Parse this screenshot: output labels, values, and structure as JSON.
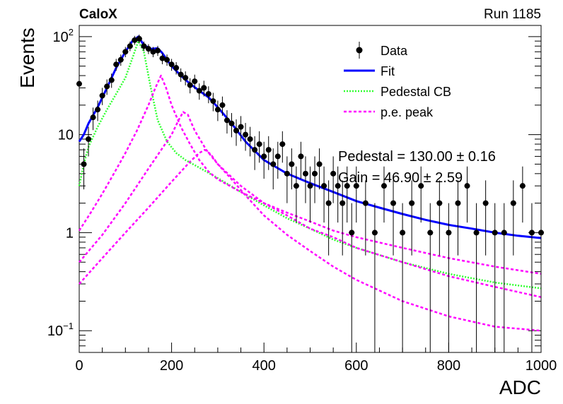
{
  "header": {
    "experiment": "CaloX",
    "run": "Run 1185"
  },
  "chart_data": {
    "type": "scatter",
    "xlabel": "ADC",
    "ylabel": "Events",
    "xlim": [
      0,
      1000
    ],
    "ylim": [
      0.06,
      130
    ],
    "yscale": "log",
    "grid": false,
    "legend_position": "top-right",
    "x_ticks": [
      "0",
      "200",
      "400",
      "600",
      "800",
      "1000"
    ],
    "y_ticks": [
      {
        "value": 100,
        "label": "10",
        "exp": "2"
      },
      {
        "value": 10,
        "label": "10",
        "exp": ""
      },
      {
        "value": 1,
        "label": "1",
        "exp": ""
      },
      {
        "value": 0.1,
        "label": "10",
        "exp": "−1"
      }
    ],
    "legend": [
      {
        "label": "Data",
        "style": "marker",
        "color": "#000000"
      },
      {
        "label": "Fit",
        "style": "solid",
        "color": "#0000ff"
      },
      {
        "label": "Pedestal CB",
        "style": "dotted",
        "color": "#33ff33"
      },
      {
        "label": "p.e. peak",
        "style": "dashed",
        "color": "#ff00ff"
      }
    ],
    "annotations": [
      "Pedestal = 130.00 ± 0.16",
      "Gain = 46.90 ± 2.59"
    ],
    "series": [
      {
        "name": "Data",
        "type": "points",
        "color": "#000000",
        "x": [
          0,
          10,
          20,
          30,
          40,
          50,
          60,
          70,
          80,
          90,
          100,
          110,
          120,
          130,
          140,
          150,
          160,
          170,
          180,
          190,
          200,
          210,
          220,
          230,
          240,
          250,
          260,
          270,
          280,
          290,
          300,
          310,
          320,
          330,
          340,
          350,
          360,
          370,
          380,
          390,
          400,
          410,
          420,
          430,
          440,
          450,
          460,
          470,
          480,
          490,
          500,
          510,
          520,
          530,
          540,
          550,
          560,
          570,
          580,
          590,
          600,
          620,
          640,
          660,
          680,
          700,
          720,
          740,
          760,
          780,
          800,
          820,
          840,
          860,
          880,
          900,
          920,
          940,
          960,
          980,
          1000
        ],
        "y": [
          33,
          5,
          9,
          15,
          18,
          25,
          31,
          36,
          52,
          58,
          70,
          80,
          92,
          95,
          80,
          75,
          70,
          72,
          60,
          58,
          52,
          48,
          41,
          38,
          32,
          35,
          28,
          30,
          26,
          22,
          18,
          20,
          14,
          13,
          11,
          12,
          10,
          9,
          7,
          8,
          6,
          7,
          5,
          6,
          8,
          4,
          5,
          3,
          6,
          4,
          3,
          4,
          5,
          3,
          2,
          4,
          3,
          2,
          3,
          1,
          3,
          2,
          1,
          3,
          2,
          1,
          2,
          3,
          1,
          2,
          1,
          2,
          3,
          1,
          2,
          1,
          1,
          2,
          3,
          1,
          1
        ]
      },
      {
        "name": "Fit",
        "type": "line",
        "color": "#0000ff",
        "x": [
          0,
          10,
          20,
          40,
          60,
          80,
          100,
          115,
          128,
          140,
          155,
          170,
          180,
          190,
          200,
          220,
          240,
          260,
          280,
          300,
          330,
          360,
          400,
          450,
          500,
          550,
          600,
          650,
          700,
          750,
          800,
          850,
          900,
          950,
          1000
        ],
        "y": [
          8.5,
          10,
          13,
          19,
          30,
          48,
          70,
          90,
          100,
          82,
          75,
          76,
          68,
          58,
          50,
          40,
          33,
          28,
          24,
          19,
          13,
          8.5,
          5.5,
          4,
          3.2,
          2.6,
          2.1,
          1.8,
          1.55,
          1.35,
          1.2,
          1.1,
          1.0,
          0.93,
          0.88
        ]
      },
      {
        "name": "Pedestal CB",
        "type": "line",
        "color": "#33ff33",
        "x": [
          0,
          10,
          20,
          40,
          60,
          80,
          100,
          115,
          128,
          140,
          155,
          170,
          190,
          210,
          230,
          260,
          300,
          350,
          400,
          450,
          500,
          550,
          600,
          700,
          800,
          900,
          1000
        ],
        "y": [
          3,
          5,
          7.5,
          12,
          18,
          26,
          38,
          60,
          90,
          70,
          30,
          14,
          8.5,
          6.5,
          5.5,
          4.6,
          3.6,
          2.6,
          1.9,
          1.4,
          1.1,
          0.85,
          0.7,
          0.5,
          0.38,
          0.31,
          0.27
        ]
      },
      {
        "name": "p.e. peak",
        "type": "line",
        "color": "#ff00ff",
        "x": [
          0,
          25,
          50,
          75,
          100,
          125,
          150,
          165,
          177,
          188,
          200,
          220,
          240,
          260,
          280,
          300,
          350,
          400,
          450,
          500,
          550,
          600,
          700,
          800,
          900,
          1000
        ],
        "y": [
          1.05,
          1.6,
          2.5,
          4.0,
          6.5,
          11,
          20,
          30,
          40,
          30,
          20,
          12,
          8,
          5.5,
          4.2,
          3.5,
          2.6,
          2.0,
          1.6,
          1.3,
          1.05,
          0.9,
          0.7,
          0.55,
          0.45,
          0.38
        ]
      },
      {
        "name": "p.e. peak",
        "type": "line",
        "color": "#ff00ff",
        "x": [
          0,
          50,
          100,
          150,
          200,
          215,
          225,
          235,
          250,
          275,
          300,
          350,
          400,
          450,
          500,
          550,
          600,
          700,
          800,
          900,
          1000
        ],
        "y": [
          0.5,
          0.95,
          2.0,
          4.5,
          10,
          14,
          17,
          16,
          11,
          7,
          5,
          3,
          2.0,
          1.5,
          1.1,
          0.9,
          0.7,
          0.5,
          0.36,
          0.28,
          0.22
        ]
      },
      {
        "name": "p.e. peak",
        "type": "line",
        "color": "#ff00ff",
        "x": [
          0,
          50,
          100,
          150,
          200,
          240,
          260,
          272,
          285,
          300,
          330,
          360,
          400,
          450,
          500,
          550,
          600,
          700,
          800,
          900,
          1000
        ],
        "y": [
          0.3,
          0.55,
          1.0,
          1.8,
          3.3,
          5.3,
          6.5,
          7.0,
          6.3,
          5.0,
          3.5,
          2.4,
          1.5,
          0.95,
          0.65,
          0.45,
          0.33,
          0.2,
          0.14,
          0.11,
          0.1
        ]
      }
    ]
  }
}
